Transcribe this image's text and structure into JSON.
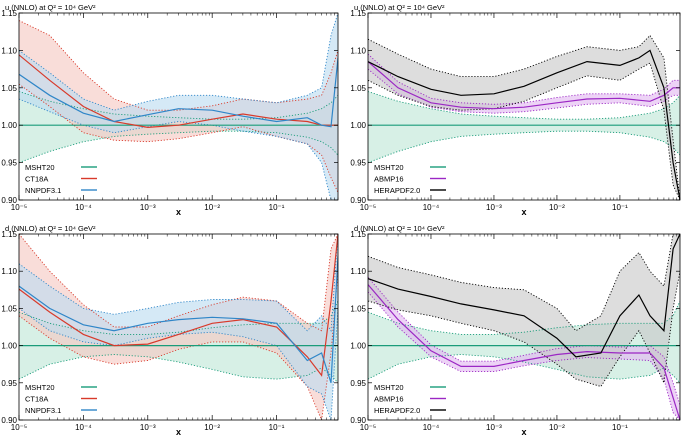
{
  "chart_data": [
    {
      "type": "line",
      "title": "u (NNLO) at Q² = 10⁴ GeV²",
      "xlabel": "x",
      "ylabel": "",
      "xscale": "log",
      "xlim": [
        1e-05,
        0.9
      ],
      "ylim": [
        0.9,
        1.15
      ],
      "xticks": [
        "10⁻⁵",
        "10⁻⁴",
        "10⁻³",
        "10⁻²",
        "10⁻¹"
      ],
      "yticks": [
        "0.90",
        "0.95",
        "1.00",
        "1.05",
        "1.10",
        "1.15"
      ],
      "legend_position": "bottom-left",
      "series": [
        {
          "name": "MSHT20",
          "color": "#1a9c7a",
          "fill": "#bfe6d6",
          "style": "solid",
          "edge": "dotted",
          "x": [
            1e-05,
            3e-05,
            0.0001,
            0.0003,
            0.001,
            0.003,
            0.01,
            0.03,
            0.1,
            0.3,
            0.5,
            0.7,
            0.9
          ],
          "values": [
            1.0,
            1.0,
            1.0,
            1.0,
            1.0,
            1.0,
            1.0,
            1.0,
            1.0,
            1.0,
            1.0,
            1.0,
            1.0
          ],
          "lower": [
            0.95,
            0.965,
            0.978,
            0.985,
            0.988,
            0.99,
            0.992,
            0.992,
            0.99,
            0.984,
            0.978,
            0.97,
            0.96
          ],
          "upper": [
            1.045,
            1.032,
            1.022,
            1.015,
            1.012,
            1.01,
            1.008,
            1.008,
            1.01,
            1.016,
            1.022,
            1.03,
            1.04
          ]
        },
        {
          "name": "CT18A",
          "color": "#d83a2b",
          "fill": "#f5c8c2",
          "style": "solid",
          "edge": "dotted",
          "x": [
            1e-05,
            3e-05,
            0.0001,
            0.0003,
            0.001,
            0.003,
            0.01,
            0.03,
            0.1,
            0.3,
            0.5,
            0.7,
            0.9
          ],
          "values": [
            1.094,
            1.06,
            1.025,
            1.005,
            0.997,
            1.0,
            1.008,
            1.015,
            1.008,
            1.005,
            1.0,
            1.0,
            1.0
          ],
          "lower": [
            1.055,
            1.025,
            0.99,
            0.98,
            0.978,
            0.982,
            0.99,
            0.998,
            0.985,
            0.975,
            0.96,
            0.93,
            0.91
          ],
          "upper": [
            1.14,
            1.12,
            1.07,
            1.035,
            1.02,
            1.02,
            1.026,
            1.035,
            1.03,
            1.035,
            1.04,
            1.07,
            1.1
          ]
        },
        {
          "name": "NNPDF3.1",
          "color": "#2f86c8",
          "fill": "#bcdcf0",
          "style": "solid",
          "edge": "dotted",
          "x": [
            1e-05,
            3e-05,
            0.0001,
            0.0003,
            0.001,
            0.003,
            0.01,
            0.03,
            0.1,
            0.3,
            0.5,
            0.7,
            0.9
          ],
          "values": [
            1.068,
            1.04,
            1.016,
            1.005,
            1.014,
            1.022,
            1.02,
            1.012,
            1.005,
            1.01,
            1.0,
            0.998,
            1.09
          ],
          "lower": [
            1.035,
            1.018,
            1.0,
            0.99,
            0.998,
            1.005,
            1.0,
            0.992,
            0.985,
            0.975,
            0.95,
            0.9,
            0.9
          ],
          "upper": [
            1.1,
            1.07,
            1.035,
            1.02,
            1.032,
            1.04,
            1.04,
            1.035,
            1.03,
            1.04,
            1.05,
            1.12,
            1.15
          ]
        }
      ]
    },
    {
      "type": "line",
      "title": "u (NNLO) at Q² = 10⁴ GeV²",
      "xlabel": "x",
      "ylabel": "",
      "xscale": "log",
      "xlim": [
        1e-05,
        0.9
      ],
      "ylim": [
        0.9,
        1.15
      ],
      "xticks": [
        "10⁻⁵",
        "10⁻⁴",
        "10⁻³",
        "10⁻²",
        "10⁻¹"
      ],
      "yticks": [
        "0.90",
        "0.95",
        "1.00",
        "1.05",
        "1.10",
        "1.15"
      ],
      "legend_position": "bottom-left",
      "series": [
        {
          "name": "MSHT20",
          "color": "#1a9c7a",
          "fill": "#bfe6d6",
          "style": "solid",
          "edge": "dotted",
          "x": [
            1e-05,
            3e-05,
            0.0001,
            0.0003,
            0.001,
            0.003,
            0.01,
            0.03,
            0.1,
            0.3,
            0.5,
            0.7,
            0.9
          ],
          "values": [
            1.0,
            1.0,
            1.0,
            1.0,
            1.0,
            1.0,
            1.0,
            1.0,
            1.0,
            1.0,
            1.0,
            1.0,
            1.0
          ],
          "lower": [
            0.95,
            0.965,
            0.978,
            0.985,
            0.988,
            0.99,
            0.992,
            0.992,
            0.99,
            0.984,
            0.978,
            0.97,
            0.96
          ],
          "upper": [
            1.045,
            1.032,
            1.022,
            1.015,
            1.012,
            1.01,
            1.008,
            1.008,
            1.01,
            1.016,
            1.022,
            1.03,
            1.04
          ]
        },
        {
          "name": "ABMP16",
          "color": "#9b27c4",
          "fill": "#e2b8f0",
          "style": "solid",
          "edge": "dotted",
          "x": [
            1e-05,
            3e-05,
            0.0001,
            0.0003,
            0.001,
            0.003,
            0.01,
            0.03,
            0.1,
            0.3,
            0.5,
            0.7,
            0.9
          ],
          "values": [
            1.085,
            1.05,
            1.03,
            1.024,
            1.022,
            1.024,
            1.03,
            1.035,
            1.036,
            1.032,
            1.04,
            1.05,
            1.05
          ],
          "lower": [
            1.075,
            1.042,
            1.024,
            1.018,
            1.016,
            1.018,
            1.023,
            1.028,
            1.03,
            1.025,
            1.032,
            1.04,
            1.04
          ],
          "upper": [
            1.095,
            1.058,
            1.036,
            1.03,
            1.028,
            1.03,
            1.037,
            1.042,
            1.042,
            1.04,
            1.048,
            1.06,
            1.06
          ]
        },
        {
          "name": "HERAPDF2.0",
          "color": "#000000",
          "fill": "#c8c8c8",
          "style": "solid",
          "edge": "dotted",
          "x": [
            1e-05,
            3e-05,
            0.0001,
            0.0003,
            0.001,
            0.003,
            0.01,
            0.03,
            0.1,
            0.2,
            0.3,
            0.5,
            0.7,
            0.9
          ],
          "values": [
            1.085,
            1.065,
            1.048,
            1.04,
            1.042,
            1.052,
            1.07,
            1.085,
            1.08,
            1.09,
            1.1,
            1.05,
            0.95,
            0.9
          ],
          "lower": [
            1.06,
            1.04,
            1.025,
            1.02,
            1.022,
            1.032,
            1.05,
            1.066,
            1.06,
            1.075,
            1.083,
            1.02,
            0.92,
            0.9
          ],
          "upper": [
            1.115,
            1.095,
            1.075,
            1.065,
            1.065,
            1.075,
            1.092,
            1.105,
            1.1,
            1.105,
            1.12,
            1.09,
            0.98,
            0.9
          ]
        }
      ]
    },
    {
      "type": "line",
      "title": "d (NNLO) at Q² = 10⁴ GeV²",
      "xlabel": "x",
      "ylabel": "",
      "xscale": "log",
      "xlim": [
        1e-05,
        0.9
      ],
      "ylim": [
        0.9,
        1.15
      ],
      "xticks": [
        "10⁻⁵",
        "10⁻⁴",
        "10⁻³",
        "10⁻²",
        "10⁻¹"
      ],
      "yticks": [
        "0.90",
        "0.95",
        "1.00",
        "1.05",
        "1.10",
        "1.15"
      ],
      "legend_position": "bottom-left",
      "series": [
        {
          "name": "MSHT20",
          "color": "#1a9c7a",
          "fill": "#bfe6d6",
          "style": "solid",
          "edge": "dotted",
          "x": [
            1e-05,
            3e-05,
            0.0001,
            0.0003,
            0.001,
            0.003,
            0.01,
            0.03,
            0.1,
            0.3,
            0.5,
            0.7,
            0.9
          ],
          "values": [
            1.0,
            1.0,
            1.0,
            1.0,
            1.0,
            1.0,
            1.0,
            1.0,
            1.0,
            1.0,
            1.0,
            1.0,
            1.0
          ],
          "lower": [
            0.955,
            0.975,
            0.985,
            0.988,
            0.985,
            0.978,
            0.968,
            0.958,
            0.955,
            0.96,
            0.97,
            0.96,
            0.95
          ],
          "upper": [
            1.045,
            1.03,
            1.02,
            1.015,
            1.015,
            1.018,
            1.024,
            1.028,
            1.03,
            1.03,
            1.03,
            1.04,
            1.06
          ]
        },
        {
          "name": "CT18A",
          "color": "#d83a2b",
          "fill": "#f5c8c2",
          "style": "solid",
          "edge": "dotted",
          "x": [
            1e-05,
            3e-05,
            0.0001,
            0.0003,
            0.001,
            0.003,
            0.01,
            0.03,
            0.1,
            0.3,
            0.5,
            0.7,
            0.9
          ],
          "values": [
            1.076,
            1.045,
            1.015,
            1.0,
            1.002,
            1.015,
            1.03,
            1.035,
            1.025,
            0.985,
            0.96,
            1.06,
            1.15
          ],
          "lower": [
            1.04,
            1.01,
            0.985,
            0.975,
            0.98,
            0.995,
            1.005,
            1.005,
            0.99,
            0.945,
            0.9,
            0.99,
            1.1
          ],
          "upper": [
            1.15,
            1.1,
            1.055,
            1.025,
            1.025,
            1.04,
            1.055,
            1.065,
            1.06,
            1.03,
            1.02,
            1.13,
            1.15
          ]
        },
        {
          "name": "NNPDF3.1",
          "color": "#2f86c8",
          "fill": "#bcdcf0",
          "style": "solid",
          "edge": "dotted",
          "x": [
            1e-05,
            3e-05,
            0.0001,
            0.0003,
            0.001,
            0.003,
            0.01,
            0.03,
            0.1,
            0.3,
            0.5,
            0.7,
            0.9
          ],
          "values": [
            1.08,
            1.05,
            1.028,
            1.02,
            1.03,
            1.035,
            1.038,
            1.036,
            1.03,
            0.98,
            0.99,
            0.95,
            1.12
          ],
          "lower": [
            1.05,
            1.02,
            1.005,
            1.0,
            1.01,
            1.015,
            1.018,
            1.012,
            1.0,
            0.945,
            0.935,
            0.9,
            1.05
          ],
          "upper": [
            1.11,
            1.08,
            1.05,
            1.042,
            1.05,
            1.058,
            1.062,
            1.062,
            1.06,
            1.02,
            1.04,
            1.02,
            1.15
          ]
        }
      ]
    },
    {
      "type": "line",
      "title": "d (NNLO) at Q² = 10⁴ GeV²",
      "xlabel": "x",
      "ylabel": "",
      "xscale": "log",
      "xlim": [
        1e-05,
        0.9
      ],
      "ylim": [
        0.9,
        1.15
      ],
      "xticks": [
        "10⁻⁵",
        "10⁻⁴",
        "10⁻³",
        "10⁻²",
        "10⁻¹"
      ],
      "yticks": [
        "0.90",
        "0.95",
        "1.00",
        "1.05",
        "1.10",
        "1.15"
      ],
      "legend_position": "bottom-left",
      "series": [
        {
          "name": "MSHT20",
          "color": "#1a9c7a",
          "fill": "#bfe6d6",
          "style": "solid",
          "edge": "dotted",
          "x": [
            1e-05,
            3e-05,
            0.0001,
            0.0003,
            0.001,
            0.003,
            0.01,
            0.03,
            0.1,
            0.3,
            0.5,
            0.7,
            0.9
          ],
          "values": [
            1.0,
            1.0,
            1.0,
            1.0,
            1.0,
            1.0,
            1.0,
            1.0,
            1.0,
            1.0,
            1.0,
            1.0,
            1.0
          ],
          "lower": [
            0.955,
            0.975,
            0.985,
            0.988,
            0.985,
            0.978,
            0.968,
            0.958,
            0.955,
            0.96,
            0.97,
            0.96,
            0.95
          ],
          "upper": [
            1.045,
            1.03,
            1.02,
            1.015,
            1.015,
            1.018,
            1.024,
            1.028,
            1.03,
            1.03,
            1.03,
            1.04,
            1.06
          ]
        },
        {
          "name": "ABMP16",
          "color": "#9b27c4",
          "fill": "#e2b8f0",
          "style": "solid",
          "edge": "dotted",
          "x": [
            1e-05,
            3e-05,
            0.0001,
            0.0003,
            0.001,
            0.003,
            0.01,
            0.03,
            0.1,
            0.3,
            0.5,
            0.7,
            0.9
          ],
          "values": [
            1.082,
            1.035,
            0.993,
            0.972,
            0.972,
            0.98,
            0.988,
            0.992,
            0.99,
            0.99,
            0.97,
            0.93,
            0.9
          ],
          "lower": [
            1.072,
            1.025,
            0.985,
            0.965,
            0.965,
            0.973,
            0.98,
            0.984,
            0.982,
            0.98,
            0.955,
            0.91,
            0.9
          ],
          "upper": [
            1.092,
            1.045,
            1.001,
            0.979,
            0.979,
            0.987,
            0.996,
            1.0,
            0.998,
            1.0,
            0.985,
            0.95,
            0.92
          ]
        },
        {
          "name": "HERAPDF2.0",
          "color": "#000000",
          "fill": "#c8c8c8",
          "style": "solid",
          "edge": "dotted",
          "x": [
            1e-05,
            3e-05,
            0.0001,
            0.0003,
            0.001,
            0.003,
            0.01,
            0.02,
            0.05,
            0.1,
            0.2,
            0.3,
            0.5,
            0.7,
            0.9
          ],
          "values": [
            1.09,
            1.076,
            1.066,
            1.056,
            1.048,
            1.04,
            1.01,
            0.985,
            0.99,
            1.04,
            1.068,
            1.04,
            1.02,
            1.13,
            1.15
          ],
          "lower": [
            1.06,
            1.048,
            1.04,
            1.03,
            1.02,
            1.005,
            0.975,
            0.955,
            0.945,
            0.985,
            1.02,
            0.99,
            0.95,
            1.05,
            1.1
          ],
          "upper": [
            1.12,
            1.105,
            1.095,
            1.085,
            1.078,
            1.075,
            1.05,
            1.02,
            1.04,
            1.1,
            1.125,
            1.1,
            1.08,
            1.15,
            1.15
          ]
        }
      ]
    }
  ]
}
